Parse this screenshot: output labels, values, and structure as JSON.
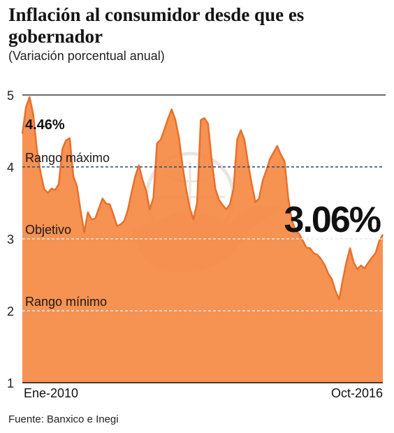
{
  "title": "Inflación al consumidor desde que es gobernador",
  "subtitle": "(Variación porcentual anual)",
  "source": "Fuente: Banxico e Inegi",
  "colors": {
    "area": "#f58a45",
    "line": "#e8702a",
    "reference": "#2b4a7a",
    "axis": "#111111"
  },
  "chart_data": {
    "type": "area",
    "x_start": "Ene-2010",
    "x_end": "Oct-2016",
    "x_labels": [
      "Ene-2010",
      "Oct-2016"
    ],
    "ylim": [
      1,
      5
    ],
    "yticks": [
      1,
      2,
      3,
      4,
      5
    ],
    "series": [
      {
        "values": [
          4.46,
          4.83,
          4.97,
          4.73,
          4.24,
          3.92,
          3.69,
          3.64,
          3.7,
          3.68,
          3.76,
          4.25,
          4.37,
          4.4,
          3.87,
          3.73,
          3.39,
          3.09,
          3.37,
          3.27,
          3.28,
          3.42,
          3.56,
          3.49,
          3.48,
          3.34,
          3.18,
          3.2,
          3.25,
          3.41,
          3.65,
          3.87,
          4.02,
          3.82,
          3.67,
          3.41,
          3.57,
          4.33,
          4.38,
          4.52,
          4.67,
          4.8,
          4.66,
          4.41,
          4.02,
          3.69,
          3.42,
          3.27,
          3.51,
          4.65,
          4.68,
          4.6,
          4.1,
          3.7,
          3.54,
          3.47,
          3.41,
          3.48,
          3.7,
          4.38,
          4.51,
          4.38,
          4.05,
          3.76,
          3.51,
          3.56,
          3.81,
          3.95,
          4.11,
          4.2,
          4.29,
          4.17,
          4.08,
          3.58,
          3.26,
          3.12,
          3.07,
          2.98,
          2.88,
          2.87,
          2.8,
          2.78,
          2.72,
          2.64,
          2.52,
          2.44,
          2.28,
          2.16,
          2.43,
          2.68,
          2.87,
          2.67,
          2.58,
          2.63,
          2.59,
          2.67,
          2.74,
          2.8,
          2.97,
          3.06
        ]
      }
    ],
    "reference_lines": [
      {
        "value": 4,
        "label": "Rango máximo"
      },
      {
        "value": 3,
        "label": "Objetivo"
      },
      {
        "value": 2,
        "label": "Rango mínimo"
      }
    ],
    "annotations": [
      {
        "text": "4.46%",
        "at_index": 0
      },
      {
        "text": "3.06%",
        "at_index": 99
      }
    ],
    "grid": false
  }
}
